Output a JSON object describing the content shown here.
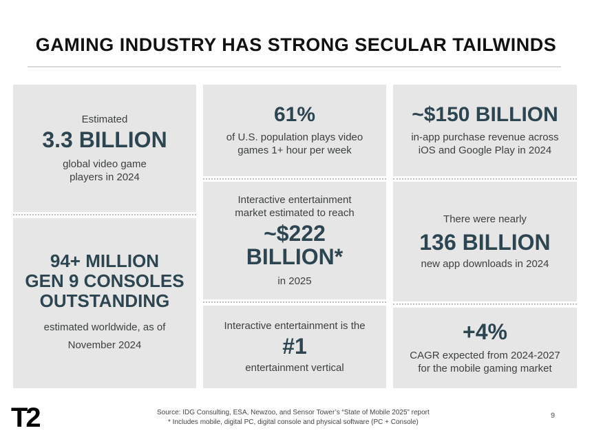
{
  "title": "GAMING INDUSTRY HAS STRONG SECULAR TAILWINDS",
  "tiles": {
    "players": {
      "top": "Estimated",
      "big": "3.3 BILLION",
      "bottom1": "global video game",
      "bottom2": "players in 2024"
    },
    "us_pop": {
      "big": "61%",
      "bottom1": "of U.S. population plays video",
      "bottom2": "games 1+ hour per week"
    },
    "iap": {
      "big": "~$150 BILLION",
      "bottom1": "in-app purchase revenue across",
      "bottom2": "iOS and Google Play in 2024"
    },
    "consoles": {
      "big1": "94+ MILLION",
      "big2": "GEN 9 CONSOLES",
      "big3": "OUTSTANDING",
      "bottom1": "estimated worldwide, as of",
      "bottom2": "November 2024"
    },
    "market": {
      "top1": "Interactive entertainment",
      "top2": "market estimated to reach",
      "big1": "~$222",
      "big2": "BILLION*",
      "bottom": "in 2025"
    },
    "downloads": {
      "top": "There were nearly",
      "big": "136 BILLION",
      "bottom": "new app downloads in 2024"
    },
    "vertical": {
      "top": "Interactive entertainment is the",
      "big": "#1",
      "bottom": "entertainment vertical"
    },
    "cagr": {
      "big": "+4%",
      "bottom1": "CAGR expected from 2024-2027",
      "bottom2": "for the mobile gaming market"
    }
  },
  "footer": {
    "source": "Source:  IDG Consulting, ESA, Newzoo, and Sensor Tower’s “State of Mobile 2025” report",
    "note": "*  Includes mobile, digital PC, digital console and physical software (PC + Console)",
    "page": "9",
    "logo": "T2"
  }
}
